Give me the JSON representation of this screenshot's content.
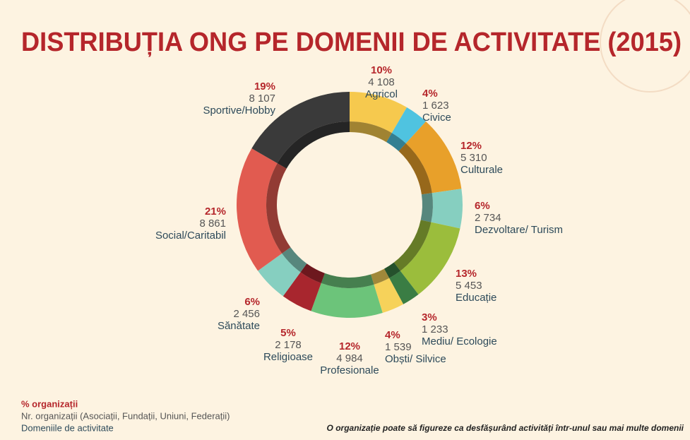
{
  "chart_data": {
    "type": "donut",
    "title": "DISTRIBUȚIA ONG PE DOMENII DE ACTIVITATE (2015)",
    "categories": [
      "Agricol",
      "Civice",
      "Culturale",
      "Dezvoltare/ Turism",
      "Educație",
      "Mediu/ Ecologie",
      "Obști/ Silvice",
      "Profesionale",
      "Religioase",
      "Sănătate",
      "Social/Caritabil",
      "Sportive/Hobby"
    ],
    "colors": [
      "#f6c94e",
      "#4fc3e0",
      "#e8a02a",
      "#86cfc0",
      "#9bbd3c",
      "#3a7d44",
      "#f6d25a",
      "#6cc47a",
      "#a8262e",
      "#86cfc0",
      "#e15b50",
      "#3a3a3a"
    ],
    "series": [
      {
        "name": "% organizații",
        "color": "#b5262b",
        "values": [
          10,
          4,
          12,
          6,
          13,
          3,
          4,
          12,
          5,
          6,
          21,
          19
        ],
        "value_labels": [
          "10%",
          "4%",
          "12%",
          "6%",
          "13%",
          "3%",
          "4%",
          "12%",
          "5%",
          "6%",
          "21%",
          "19%"
        ]
      },
      {
        "name": "Nr. organizații (Asociații, Fundații, Uniuni, Federații)",
        "color": "#555555",
        "values": [
          4108,
          1623,
          5310,
          2734,
          5453,
          1233,
          1539,
          4984,
          2178,
          2456,
          8861,
          8107
        ],
        "value_labels": [
          "4 108",
          "1 623",
          "5 310",
          "2 734",
          "5 453",
          "1 233",
          "1 539",
          "4 984",
          "2 178",
          "2 456",
          "8 861",
          "8 107"
        ]
      }
    ],
    "category_legend": "Domeniile de activitate",
    "note": "O organizație poate să figureze ca desfășurând activități într-unul sau mai multe domenii"
  }
}
